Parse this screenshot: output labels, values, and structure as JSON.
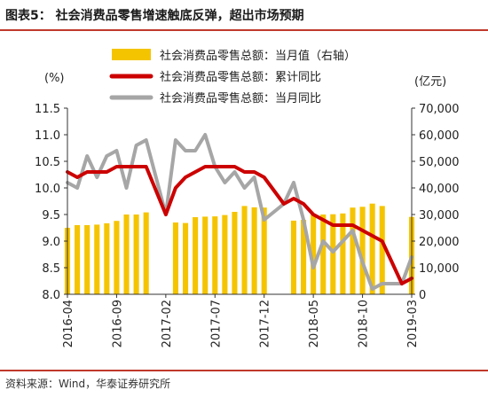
{
  "header": {
    "title": "图表5：   社会消费品零售增速触底反弹，超出市场预期"
  },
  "footer": {
    "source": "资料来源：Wind，华泰证券研究所"
  },
  "colors": {
    "bar": "#f5c400",
    "cumulative": "#cc0000",
    "monthly": "#a6a6a6",
    "rule": "#c0392b"
  },
  "chart_data": {
    "type": "bar+line",
    "title": "",
    "left_axis": {
      "unit": "(%)",
      "ylim": [
        8.0,
        11.5
      ],
      "ticks": [
        "8.0",
        "8.5",
        "9.0",
        "9.5",
        "10.0",
        "10.5",
        "11.0",
        "11.5"
      ]
    },
    "right_axis": {
      "unit": "(亿元)",
      "ylim": [
        0,
        70000
      ],
      "ticks": [
        "0",
        "10,000",
        "20,000",
        "30,000",
        "40,000",
        "50,000",
        "60,000",
        "70,000"
      ]
    },
    "x_tick_labels": [
      "2016-04",
      "2016-09",
      "2017-02",
      "2017-07",
      "2017-12",
      "2018-05",
      "2018-10",
      "2019-03"
    ],
    "x_tick_index": [
      0,
      5,
      10,
      15,
      20,
      25,
      30,
      35
    ],
    "legend": [
      {
        "label": "社会消费品零售总额：当月值（右轴）",
        "kind": "bar"
      },
      {
        "label": "社会消费品零售总额：累计同比",
        "kind": "line-red"
      },
      {
        "label": "社会消费品零售总额：当月同比",
        "kind": "line-gray"
      }
    ],
    "legend_position": "top",
    "grid": false,
    "categories": [
      "2016-04",
      "2016-05",
      "2016-06",
      "2016-07",
      "2016-08",
      "2016-09",
      "2016-10",
      "2016-11",
      "2016-12",
      "2017-01",
      "2017-02",
      "2017-03",
      "2017-04",
      "2017-05",
      "2017-06",
      "2017-07",
      "2017-08",
      "2017-09",
      "2017-10",
      "2017-11",
      "2017-12",
      "2018-01",
      "2018-02",
      "2018-03",
      "2018-04",
      "2018-05",
      "2018-06",
      "2018-07",
      "2018-08",
      "2018-09",
      "2018-10",
      "2018-11",
      "2018-12",
      "2019-01",
      "2019-02",
      "2019-03"
    ],
    "series": [
      {
        "name": "社会消费品零售总额：当月值（右轴）",
        "axis": "right",
        "type": "bar",
        "values": [
          25000,
          26000,
          26000,
          26200,
          26700,
          27600,
          30000,
          30000,
          30800,
          null,
          null,
          27000,
          26800,
          29000,
          29200,
          29300,
          29800,
          31000,
          33200,
          32700,
          32600,
          null,
          null,
          27700,
          28000,
          30300,
          30000,
          30100,
          30400,
          32600,
          32900,
          34100,
          33200,
          null,
          null,
          29100
        ]
      },
      {
        "name": "社会消费品零售总额：累计同比",
        "axis": "left",
        "type": "line",
        "values": [
          10.3,
          10.2,
          10.3,
          10.3,
          10.3,
          10.4,
          10.4,
          10.4,
          10.4,
          null,
          9.5,
          10.0,
          10.2,
          10.3,
          10.4,
          10.4,
          10.4,
          10.4,
          10.3,
          10.3,
          10.2,
          null,
          9.7,
          9.8,
          9.7,
          9.5,
          9.4,
          9.3,
          9.3,
          9.3,
          9.2,
          9.1,
          9.0,
          null,
          8.2,
          8.3
        ]
      },
      {
        "name": "社会消费品零售总额：当月同比",
        "axis": "left",
        "type": "line",
        "values": [
          10.1,
          10.0,
          10.6,
          10.2,
          10.6,
          10.7,
          10.0,
          10.8,
          10.9,
          null,
          9.5,
          10.9,
          10.7,
          10.7,
          11.0,
          10.4,
          10.1,
          10.3,
          10.0,
          10.2,
          9.4,
          null,
          9.7,
          10.1,
          9.4,
          8.5,
          9.0,
          8.8,
          9.0,
          9.2,
          8.6,
          8.1,
          8.2,
          null,
          8.2,
          8.7
        ]
      }
    ]
  }
}
